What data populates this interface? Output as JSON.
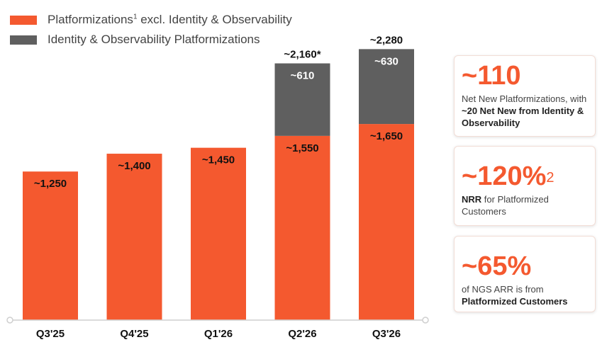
{
  "legend": {
    "items": [
      {
        "label": "Platformizations",
        "sup": "1",
        "label_rest": " excl. Identity & Observability",
        "color": "#f4592f"
      },
      {
        "label": "Identity & Observability Platformizations",
        "sup": "",
        "label_rest": "",
        "color": "#5f5f5f"
      }
    ]
  },
  "chart_data": {
    "type": "bar",
    "stacked": true,
    "categories": [
      "Q3'25",
      "Q4'25",
      "Q1'26",
      "Q2'26",
      "Q3'26"
    ],
    "series": [
      {
        "name": "Platformizations excl. Identity & Observability",
        "color": "#f4592f",
        "values": [
          1250,
          1400,
          1450,
          1550,
          1650
        ],
        "labels": [
          "~1,250",
          "~1,400",
          "~1,450",
          "~1,550",
          "~1,650"
        ]
      },
      {
        "name": "Identity & Observability Platformizations",
        "color": "#5f5f5f",
        "values": [
          0,
          0,
          0,
          610,
          630
        ],
        "labels": [
          "",
          "",
          "",
          "~610",
          "~630"
        ]
      }
    ],
    "totals": [
      "",
      "",
      "",
      "~2,160*",
      "~2,280"
    ],
    "ylim": [
      0,
      2300
    ],
    "grid": false,
    "legend_position": "top-left"
  },
  "cards": [
    {
      "big": "~110",
      "sup": "",
      "text_plain": "Net New Platformizations, with ",
      "text_bold": "~20 Net New from Identity & Observability",
      "text_after": ""
    },
    {
      "big": "~120%",
      "sup": "2",
      "text_plain": "",
      "text_bold": "NRR",
      "text_after": " for Platformized Customers"
    },
    {
      "big": "~65%",
      "sup": "",
      "text_plain": "of NGS ARR is from ",
      "text_bold": "Platformized Customers",
      "text_after": ""
    }
  ]
}
